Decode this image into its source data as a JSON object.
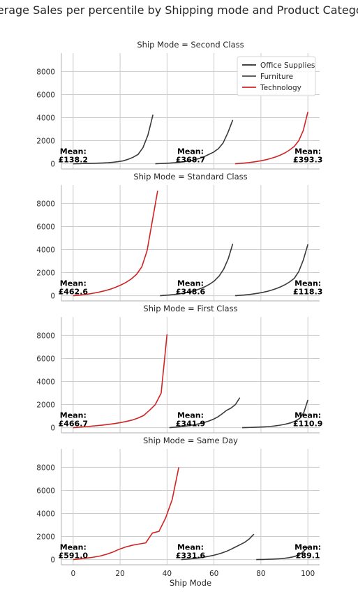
{
  "chart_data": {
    "type": "line",
    "title": "Average Sales per percentile by Shipping mode and Product Category",
    "xlabel": "Ship Mode",
    "ylabel": "",
    "xlim": [
      -5,
      105
    ],
    "ylim": [
      -450,
      9600
    ],
    "xticks": [
      0,
      20,
      40,
      60,
      80,
      100
    ],
    "yticks": [
      0,
      2000,
      4000,
      6000,
      8000
    ],
    "grid": true,
    "legend": {
      "position": "top-right",
      "entries": [
        {
          "name": "Office Supplies",
          "color": "#2a2a2e"
        },
        {
          "name": "Furniture",
          "color": "#4a4a4e"
        },
        {
          "name": "Technology",
          "color": "#d02424"
        }
      ]
    },
    "colors": {
      "Office Supplies": "#3a3a3e",
      "Furniture": "#3a3a3e",
      "Technology": "#d02424"
    },
    "panels": [
      {
        "title": "Ship Mode = Second Class",
        "series": [
          {
            "name": "Office Supplies",
            "x_start": 0,
            "x_end": 34,
            "values": [
              0,
              10,
              20,
              30,
              40,
              55,
              70,
              90,
              130,
              180,
              250,
              380,
              560,
              800,
              1400,
              2500,
              4250
            ]
          },
          {
            "name": "Furniture",
            "x_start": 35,
            "x_end": 68,
            "values": [
              0,
              20,
              40,
              60,
              90,
              130,
              180,
              250,
              330,
              450,
              600,
              800,
              1000,
              1300,
              1800,
              2700,
              3800
            ]
          },
          {
            "name": "Technology",
            "x_start": 69,
            "x_end": 100,
            "values": [
              0,
              30,
              60,
              100,
              150,
              210,
              280,
              370,
              480,
              600,
              760,
              950,
              1200,
              1500,
              2000,
              2900,
              4500
            ]
          }
        ],
        "annotations": [
          {
            "line1": "Mean:",
            "line2": "£138.2",
            "x": 0
          },
          {
            "line1": "Mean:",
            "line2": "£368.7",
            "x": 50
          },
          {
            "line1": "Mean:",
            "line2": "£393.3",
            "x": 100
          }
        ]
      },
      {
        "title": "Ship Mode = Standard Class",
        "series": [
          {
            "name": "Technology",
            "x_start": 0,
            "x_end": 36,
            "values": [
              0,
              40,
              90,
              150,
              230,
              320,
              430,
              560,
              720,
              920,
              1150,
              1450,
              1850,
              2500,
              3900,
              6500,
              9100
            ]
          },
          {
            "name": "Furniture",
            "x_start": 37,
            "x_end": 68,
            "values": [
              0,
              30,
              60,
              100,
              150,
              210,
              290,
              380,
              490,
              630,
              800,
              1020,
              1300,
              1700,
              2300,
              3200,
              4500
            ]
          },
          {
            "name": "Office Supplies",
            "x_start": 69,
            "x_end": 100,
            "values": [
              0,
              30,
              60,
              100,
              150,
              210,
              280,
              370,
              480,
              610,
              770,
              960,
              1200,
              1500,
              2100,
              3100,
              4450
            ]
          }
        ],
        "annotations": [
          {
            "line1": "Mean:",
            "line2": "£462.6",
            "x": 0
          },
          {
            "line1": "Mean:",
            "line2": "£348.6",
            "x": 50
          },
          {
            "line1": "Mean:",
            "line2": "£118.3",
            "x": 100
          }
        ]
      },
      {
        "title": "Ship Mode = First Class",
        "series": [
          {
            "name": "Technology",
            "x_start": 0,
            "x_end": 40,
            "values": [
              0,
              40,
              80,
              120,
              170,
              220,
              280,
              350,
              430,
              530,
              650,
              820,
              1050,
              1500,
              2000,
              3000,
              8100
            ]
          },
          {
            "name": "Furniture",
            "x_start": 41,
            "x_end": 71,
            "values": [
              0,
              30,
              60,
              100,
              150,
              210,
              280,
              360,
              460,
              580,
              730,
              930,
              1200,
              1500,
              1700,
              2000,
              2600
            ]
          },
          {
            "name": "Office Supplies",
            "x_start": 72,
            "x_end": 100,
            "values": [
              0,
              10,
              20,
              30,
              45,
              60,
              80,
              110,
              150,
              200,
              260,
              340,
              440,
              580,
              800,
              1300,
              2400
            ]
          }
        ],
        "annotations": [
          {
            "line1": "Mean:",
            "line2": "£466.7",
            "x": 0
          },
          {
            "line1": "Mean:",
            "line2": "£341.9",
            "x": 50
          },
          {
            "line1": "Mean:",
            "line2": "£110.9",
            "x": 100
          }
        ]
      },
      {
        "title": "Ship Mode = Same Day",
        "series": [
          {
            "name": "Technology",
            "x_start": 0,
            "x_end": 45,
            "values": [
              0,
              60,
              130,
              200,
              300,
              450,
              650,
              900,
              1100,
              1250,
              1350,
              1450,
              2300,
              2450,
              3600,
              5200,
              8000
            ]
          },
          {
            "name": "Furniture",
            "x_start": 46,
            "x_end": 77,
            "values": [
              0,
              30,
              60,
              100,
              150,
              210,
              280,
              360,
              460,
              580,
              720,
              900,
              1100,
              1300,
              1500,
              1800,
              2200
            ]
          },
          {
            "name": "Office Supplies",
            "x_start": 78,
            "x_end": 100,
            "values": [
              0,
              5,
              10,
              20,
              30,
              40,
              55,
              70,
              90,
              120,
              160,
              210,
              280,
              380,
              550,
              800,
              1100
            ]
          }
        ],
        "annotations": [
          {
            "line1": "Mean:",
            "line2": "£591.0",
            "x": 0
          },
          {
            "line1": "Mean:",
            "line2": "£331.6",
            "x": 50
          },
          {
            "line1": "Mean:",
            "line2": "£89.1",
            "x": 100
          }
        ]
      }
    ]
  }
}
